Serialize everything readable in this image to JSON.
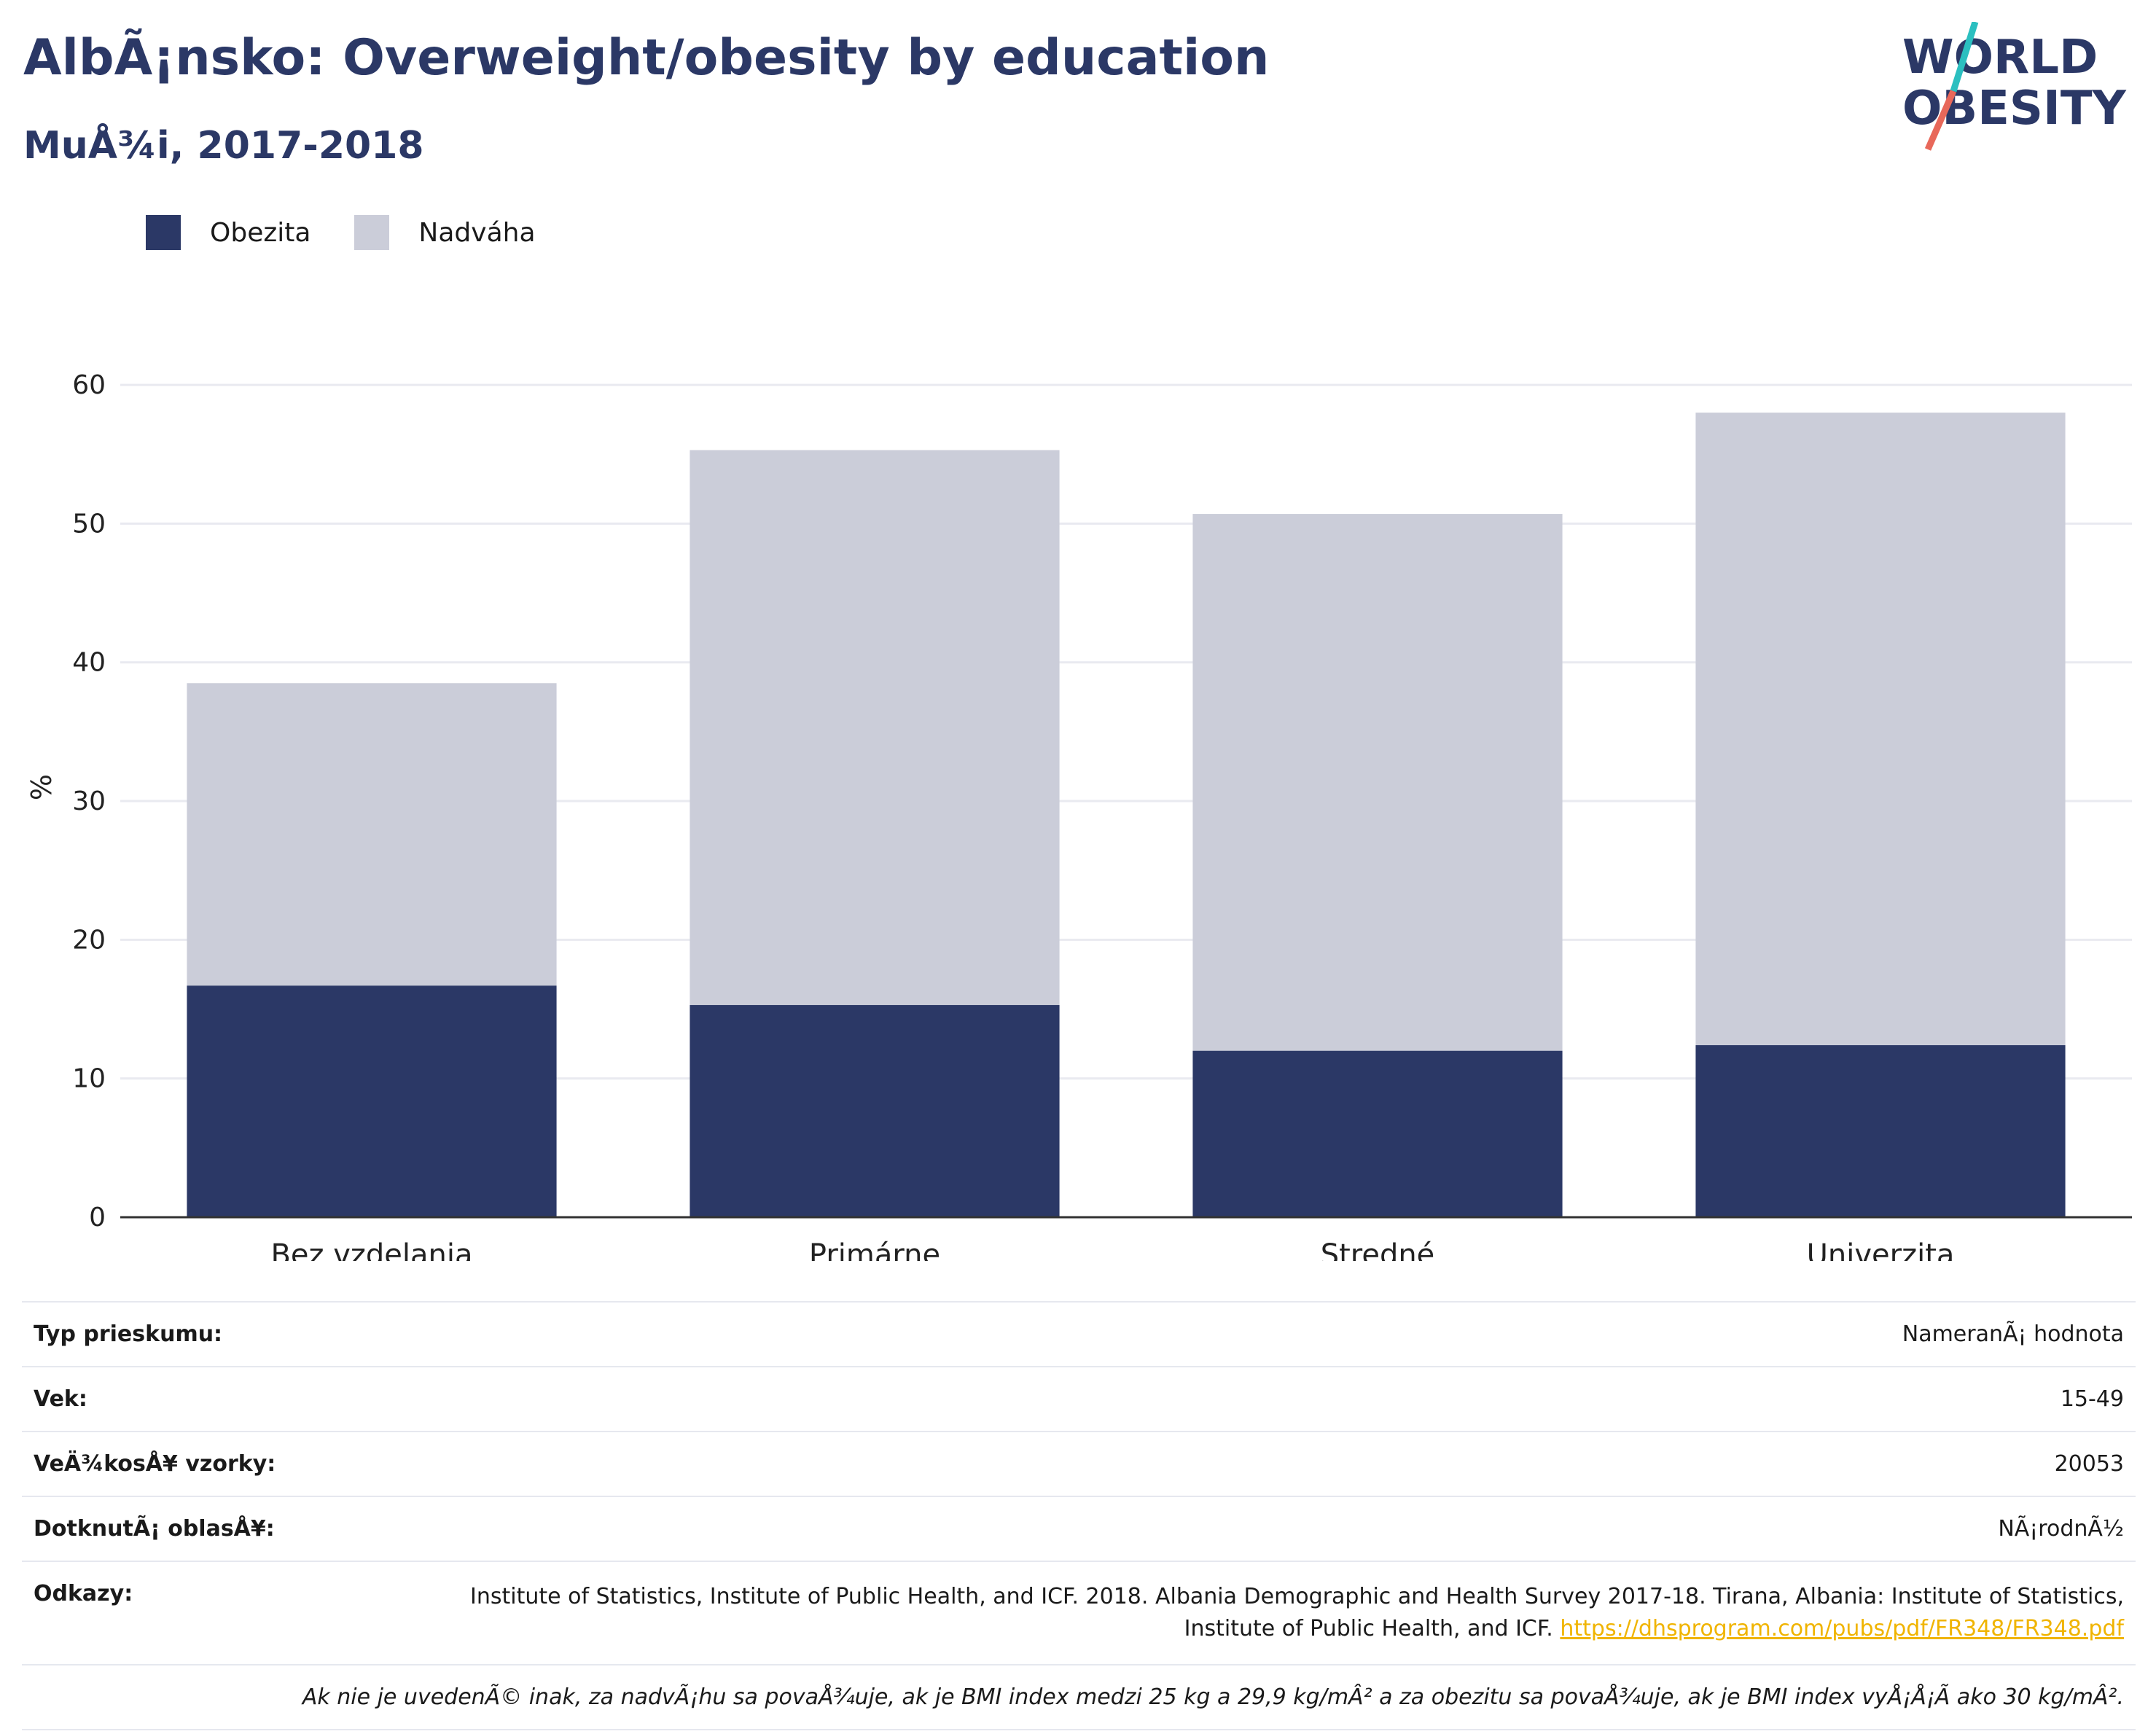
{
  "header": {
    "title": "AlbÃ¡nsko: Overweight/obesity by education",
    "subtitle": "MuÅ¾i, 2017-2018"
  },
  "logo": {
    "line1": "WORLD",
    "line2": "OBESITY"
  },
  "legend": {
    "obesity": "Obezita",
    "overweight": "Nadváha"
  },
  "colors": {
    "obesity": "#2b3866",
    "overweight": "#cbcdd9",
    "accent_teal": "#2bbfc0",
    "accent_red": "#e8685a",
    "link": "#f0b400"
  },
  "chart_data": {
    "type": "bar",
    "stacked": true,
    "categories": [
      "Bez vzdelania",
      "Primárne",
      "Stredné",
      "Univerzita"
    ],
    "series": [
      {
        "name": "Obezita",
        "values": [
          16.7,
          15.3,
          12.0,
          12.4
        ]
      },
      {
        "name": "Nadváha",
        "values": [
          21.8,
          40.0,
          38.7,
          45.6
        ]
      }
    ],
    "ylabel": "%",
    "ylim": [
      0,
      62
    ],
    "yticks": [
      0,
      10,
      20,
      30,
      40,
      50,
      60
    ],
    "grid": true,
    "legend": "top-left"
  },
  "info": {
    "survey_type_label": "Typ prieskumu:",
    "survey_type_value": "NameranÃ¡ hodnota",
    "age_label": "Vek:",
    "age_value": "15-49",
    "sample_label": "VeÄ¾kosÅ¥ vzorky:",
    "sample_value": "20053",
    "area_label": "DotknutÃ¡ oblasÅ¥:",
    "area_value": "NÃ¡rodnÃ½",
    "refs_label": "Odkazy:",
    "refs_text": "Institute of Statistics, Institute of Public Health, and ICF. 2018. Albania Demographic and Health Survey 2017-18. Tirana, Albania: Institute of Statistics, Institute of Public Health, and ICF.",
    "refs_link": "https://dhsprogram.com/pubs/pdf/FR348/FR348.pdf",
    "note": "Ak nie je uvedenÃ© inak, za nadvÃ¡hu sa povaÅ¾uje, ak je BMI index medzi 25 kg a 29,9 kg/mÂ² a za obezitu sa povaÅ¾uje, ak je BMI index vyÅ¡Å¡Ã ako 30 kg/mÂ²."
  }
}
